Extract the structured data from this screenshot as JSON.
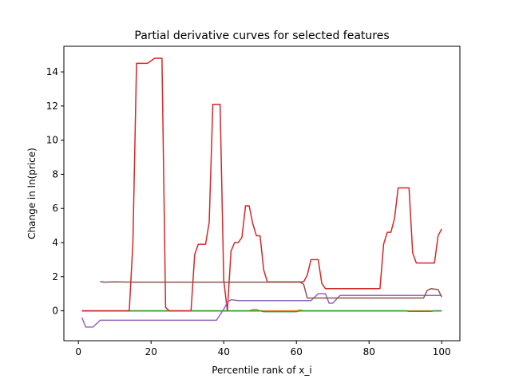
{
  "chart_data": {
    "type": "line",
    "title": "Partial derivative curves for selected features",
    "xlabel": "Percentile rank of x_i",
    "ylabel": "Change in ln(price)",
    "xlim": [
      -4,
      105
    ],
    "ylim": [
      -1.75,
      15.5
    ],
    "xticks": [
      0,
      20,
      40,
      60,
      80,
      100
    ],
    "yticks": [
      0,
      2,
      4,
      6,
      8,
      10,
      12,
      14
    ],
    "grid": false,
    "legend": "none",
    "series": [
      {
        "color": "#1f77b4",
        "points": [
          [
            1,
            0.0
          ],
          [
            100,
            0.0
          ]
        ]
      },
      {
        "color": "#ff7f0e",
        "points": [
          [
            1,
            0.0
          ],
          [
            47,
            0.0
          ],
          [
            48,
            0.08
          ],
          [
            49,
            0.08
          ],
          [
            50,
            0.0
          ],
          [
            60,
            0.0
          ],
          [
            61,
            0.05
          ],
          [
            62,
            0.0
          ],
          [
            100,
            0.0
          ]
        ]
      },
      {
        "color": "#2ca02c",
        "points": [
          [
            1,
            0.0
          ],
          [
            50,
            0.0
          ],
          [
            51,
            -0.05
          ],
          [
            60,
            -0.05
          ],
          [
            61,
            0.0
          ],
          [
            90,
            0.0
          ],
          [
            91,
            -0.03
          ],
          [
            97,
            -0.03
          ],
          [
            98,
            0.0
          ],
          [
            100,
            0.0
          ]
        ]
      },
      {
        "color": "#d62728",
        "points": [
          [
            1,
            0.0
          ],
          [
            14,
            0.0
          ],
          [
            15,
            4.0
          ],
          [
            16,
            14.5
          ],
          [
            19,
            14.5
          ],
          [
            21,
            14.8
          ],
          [
            23,
            14.8
          ],
          [
            24,
            0.2
          ],
          [
            25,
            0.0
          ],
          [
            31,
            0.0
          ],
          [
            32,
            3.3
          ],
          [
            33,
            3.9
          ],
          [
            35,
            3.9
          ],
          [
            36,
            5.2
          ],
          [
            37,
            12.1
          ],
          [
            39,
            12.1
          ],
          [
            40,
            1.8
          ],
          [
            41,
            0.0
          ],
          [
            42,
            3.5
          ],
          [
            43,
            4.0
          ],
          [
            44,
            4.0
          ],
          [
            45,
            4.3
          ],
          [
            46,
            6.15
          ],
          [
            47,
            6.15
          ],
          [
            48,
            5.1
          ],
          [
            49,
            4.4
          ],
          [
            50,
            4.4
          ],
          [
            51,
            2.4
          ],
          [
            52,
            1.7
          ],
          [
            62,
            1.7
          ],
          [
            63,
            2.1
          ],
          [
            64,
            3.0
          ],
          [
            66,
            3.0
          ],
          [
            67,
            1.6
          ],
          [
            68,
            1.3
          ],
          [
            83,
            1.3
          ],
          [
            84,
            3.9
          ],
          [
            85,
            4.6
          ],
          [
            86,
            4.6
          ],
          [
            87,
            5.4
          ],
          [
            88,
            7.2
          ],
          [
            91,
            7.2
          ],
          [
            92,
            3.4
          ],
          [
            93,
            2.8
          ],
          [
            98,
            2.8
          ],
          [
            99,
            4.4
          ],
          [
            100,
            4.8
          ]
        ]
      },
      {
        "color": "#9467bd",
        "points": [
          [
            1,
            -0.4
          ],
          [
            2,
            -0.95
          ],
          [
            4,
            -0.95
          ],
          [
            6,
            -0.55
          ],
          [
            38,
            -0.55
          ],
          [
            40,
            0.1
          ],
          [
            41,
            0.5
          ],
          [
            42,
            0.65
          ],
          [
            44,
            0.6
          ],
          [
            61,
            0.6
          ],
          [
            64,
            0.6
          ],
          [
            66,
            1.0
          ],
          [
            68,
            1.0
          ],
          [
            69,
            0.45
          ],
          [
            70,
            0.45
          ],
          [
            72,
            0.9
          ],
          [
            100,
            0.9
          ]
        ]
      },
      {
        "color": "#8c564b",
        "points": [
          [
            6,
            1.72
          ],
          [
            7,
            1.68
          ],
          [
            10,
            1.7
          ],
          [
            15,
            1.68
          ],
          [
            61,
            1.68
          ],
          [
            62,
            1.55
          ],
          [
            63,
            0.75
          ],
          [
            95,
            0.75
          ],
          [
            96,
            1.2
          ],
          [
            97,
            1.3
          ],
          [
            99,
            1.25
          ],
          [
            100,
            0.8
          ]
        ]
      }
    ]
  }
}
